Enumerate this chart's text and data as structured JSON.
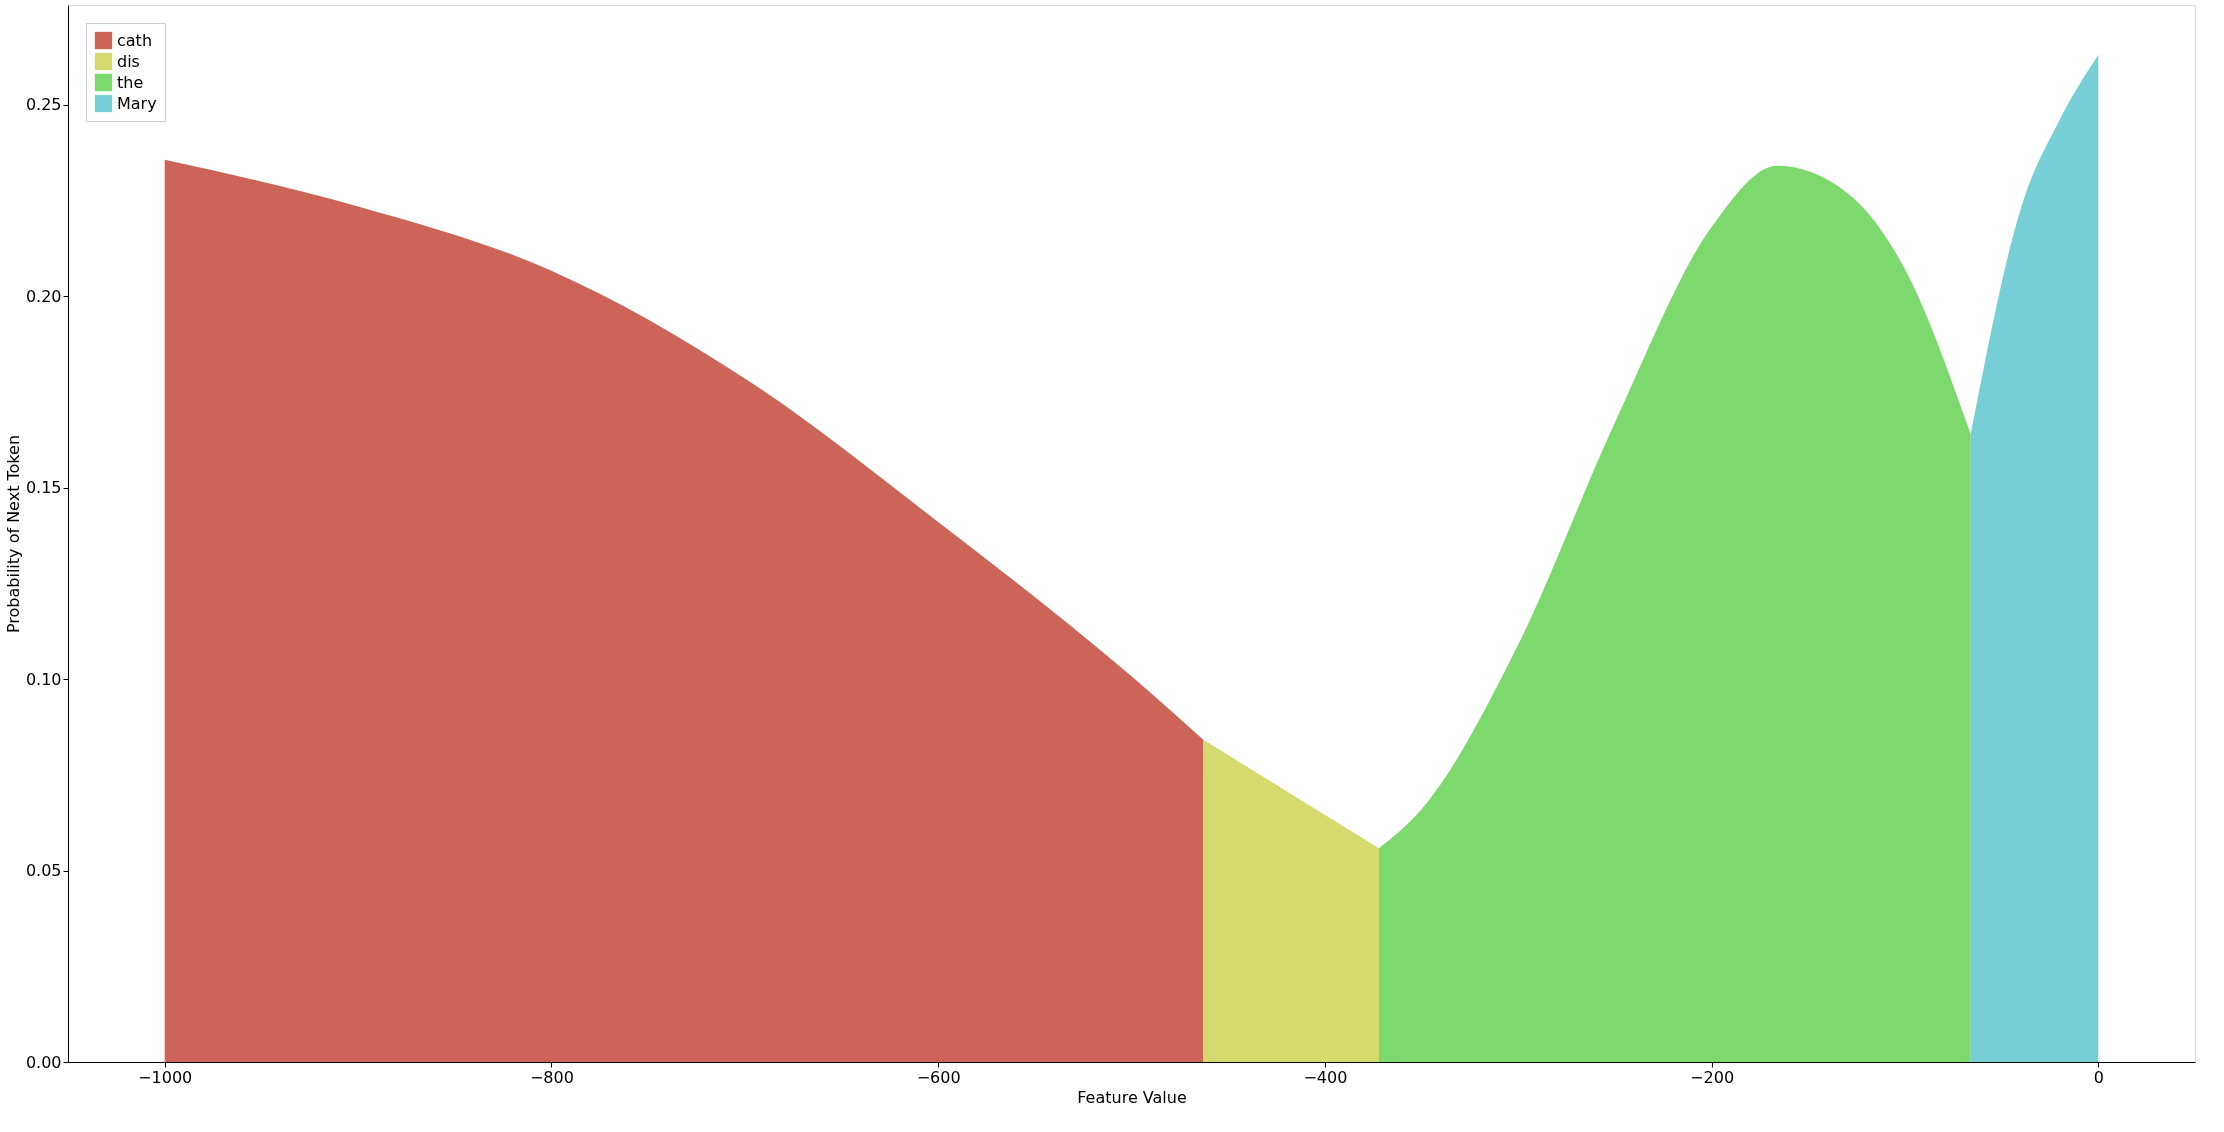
{
  "chart_data": {
    "type": "area",
    "xlabel": "Feature Value",
    "ylabel": "Probability of Next Token",
    "legend": "top left",
    "grid": false,
    "xlim": [
      -1050,
      50
    ],
    "ylim": [
      0,
      0.276
    ],
    "xticks": [
      {
        "value": -1000,
        "label": "−1000"
      },
      {
        "value": -800,
        "label": "−800"
      },
      {
        "value": -600,
        "label": "−600"
      },
      {
        "value": -400,
        "label": "−400"
      },
      {
        "value": -200,
        "label": "−200"
      },
      0
    ],
    "yticks": [
      {
        "value": 0,
        "label": "0.00"
      },
      {
        "value": 0.05,
        "label": "0.05"
      },
      {
        "value": 0.1,
        "label": "0.10"
      },
      {
        "value": 0.15,
        "label": "0.15"
      },
      {
        "value": 0.2,
        "label": "0.20"
      },
      {
        "value": 0.25,
        "label": "0.25"
      }
    ],
    "series": [
      {
        "name": "cath",
        "color": "#cd6458",
        "x": [
          -1000,
          -900,
          -800,
          -700,
          -600,
          -500,
          -463
        ],
        "values": [
          0.2356,
          0.2234,
          0.2066,
          0.1785,
          0.141,
          0.1007,
          0.0842
        ]
      },
      {
        "name": "dis",
        "color": "#d4da6e",
        "x": [
          -463,
          -372
        ],
        "values": [
          0.0842,
          0.0558
        ]
      },
      {
        "name": "the",
        "color": "#7dd86e",
        "x": [
          -372,
          -350,
          -300,
          -250,
          -200,
          -166,
          -130,
          -100,
          -66
        ],
        "values": [
          0.0558,
          0.066,
          0.109,
          0.167,
          0.218,
          0.234,
          0.227,
          0.207,
          0.164
        ]
      },
      {
        "name": "Mary",
        "color": "#79cfd8",
        "x": [
          -66,
          -40,
          -20,
          0
        ],
        "values": [
          0.164,
          0.223,
          0.246,
          0.263
        ]
      }
    ]
  }
}
